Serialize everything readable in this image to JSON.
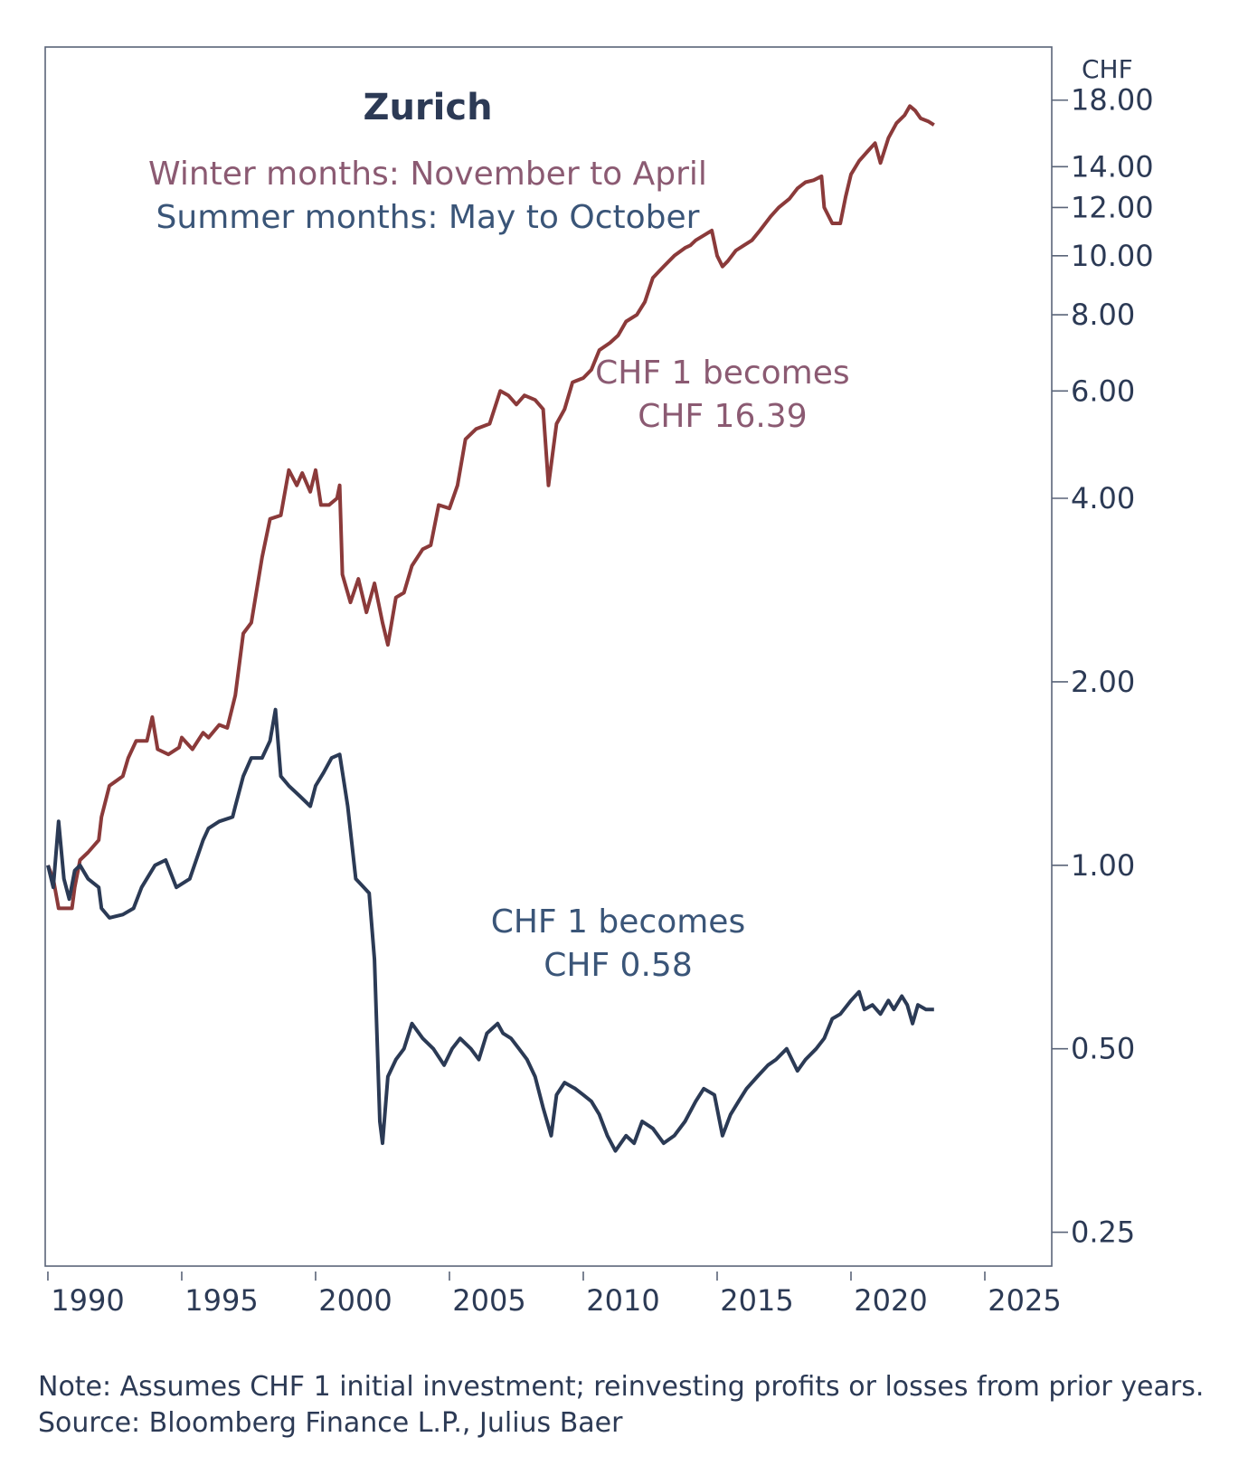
{
  "chart_data": {
    "type": "line",
    "title": "Zurich",
    "subtitles": [
      "Winter months: November to April",
      "Summer months: May to October"
    ],
    "y_unit_label": "CHF",
    "y_scale": "log",
    "ylim": [
      0.22,
      22
    ],
    "xlim": [
      1989.9,
      2027.5
    ],
    "y_ticks": [
      "18.00",
      "14.00",
      "12.00",
      "10.00",
      "8.00",
      "6.00",
      "4.00",
      "2.00",
      "1.00",
      "0.50",
      "0.25"
    ],
    "x_ticks": [
      "1990",
      "1995",
      "2000",
      "2005",
      "2010",
      "2015",
      "2020",
      "2025"
    ],
    "series": [
      {
        "name": "Winter months: November to April",
        "color": "#8b3a3a",
        "points": [
          [
            1990.0,
            1.0
          ],
          [
            1990.2,
            0.95
          ],
          [
            1990.4,
            0.85
          ],
          [
            1990.9,
            0.85
          ],
          [
            1991.0,
            0.92
          ],
          [
            1991.2,
            1.02
          ],
          [
            1991.5,
            1.05
          ],
          [
            1991.9,
            1.1
          ],
          [
            1992.0,
            1.2
          ],
          [
            1992.3,
            1.35
          ],
          [
            1992.8,
            1.4
          ],
          [
            1993.0,
            1.5
          ],
          [
            1993.3,
            1.6
          ],
          [
            1993.7,
            1.6
          ],
          [
            1993.9,
            1.75
          ],
          [
            1994.1,
            1.55
          ],
          [
            1994.5,
            1.52
          ],
          [
            1994.9,
            1.56
          ],
          [
            1995.0,
            1.62
          ],
          [
            1995.4,
            1.55
          ],
          [
            1995.8,
            1.65
          ],
          [
            1996.0,
            1.62
          ],
          [
            1996.4,
            1.7
          ],
          [
            1996.7,
            1.68
          ],
          [
            1997.0,
            1.9
          ],
          [
            1997.3,
            2.4
          ],
          [
            1997.6,
            2.5
          ],
          [
            1998.0,
            3.2
          ],
          [
            1998.3,
            3.7
          ],
          [
            1998.7,
            3.75
          ],
          [
            1999.0,
            4.45
          ],
          [
            1999.3,
            4.2
          ],
          [
            1999.5,
            4.4
          ],
          [
            1999.8,
            4.1
          ],
          [
            2000.0,
            4.45
          ],
          [
            2000.2,
            3.9
          ],
          [
            2000.5,
            3.9
          ],
          [
            2000.8,
            4.0
          ],
          [
            2000.9,
            4.2
          ],
          [
            2001.0,
            3.0
          ],
          [
            2001.3,
            2.7
          ],
          [
            2001.6,
            2.95
          ],
          [
            2001.9,
            2.6
          ],
          [
            2002.2,
            2.9
          ],
          [
            2002.5,
            2.5
          ],
          [
            2002.7,
            2.3
          ],
          [
            2003.0,
            2.75
          ],
          [
            2003.3,
            2.8
          ],
          [
            2003.6,
            3.1
          ],
          [
            2004.0,
            3.3
          ],
          [
            2004.3,
            3.35
          ],
          [
            2004.6,
            3.9
          ],
          [
            2005.0,
            3.85
          ],
          [
            2005.3,
            4.2
          ],
          [
            2005.6,
            5.0
          ],
          [
            2006.0,
            5.2
          ],
          [
            2006.5,
            5.3
          ],
          [
            2006.9,
            6.0
          ],
          [
            2007.2,
            5.9
          ],
          [
            2007.5,
            5.7
          ],
          [
            2007.8,
            5.9
          ],
          [
            2008.2,
            5.8
          ],
          [
            2008.5,
            5.6
          ],
          [
            2008.7,
            4.2
          ],
          [
            2009.0,
            5.3
          ],
          [
            2009.3,
            5.6
          ],
          [
            2009.6,
            6.2
          ],
          [
            2010.0,
            6.3
          ],
          [
            2010.3,
            6.5
          ],
          [
            2010.6,
            7.0
          ],
          [
            2011.0,
            7.2
          ],
          [
            2011.3,
            7.4
          ],
          [
            2011.6,
            7.8
          ],
          [
            2012.0,
            8.0
          ],
          [
            2012.3,
            8.4
          ],
          [
            2012.6,
            9.2
          ],
          [
            2013.0,
            9.6
          ],
          [
            2013.4,
            10.0
          ],
          [
            2013.8,
            10.3
          ],
          [
            2014.0,
            10.4
          ],
          [
            2014.2,
            10.6
          ],
          [
            2014.5,
            10.8
          ],
          [
            2014.8,
            11.0
          ],
          [
            2015.0,
            10.0
          ],
          [
            2015.2,
            9.6
          ],
          [
            2015.4,
            9.8
          ],
          [
            2015.7,
            10.2
          ],
          [
            2016.0,
            10.4
          ],
          [
            2016.3,
            10.6
          ],
          [
            2016.6,
            11.0
          ],
          [
            2017.0,
            11.6
          ],
          [
            2017.3,
            12.0
          ],
          [
            2017.7,
            12.4
          ],
          [
            2018.0,
            12.9
          ],
          [
            2018.3,
            13.2
          ],
          [
            2018.6,
            13.3
          ],
          [
            2018.9,
            13.5
          ],
          [
            2019.0,
            12.0
          ],
          [
            2019.3,
            11.3
          ],
          [
            2019.6,
            11.3
          ],
          [
            2019.8,
            12.5
          ],
          [
            2020.0,
            13.6
          ],
          [
            2020.3,
            14.3
          ],
          [
            2020.6,
            14.8
          ],
          [
            2020.9,
            15.3
          ],
          [
            2021.1,
            14.2
          ],
          [
            2021.4,
            15.6
          ],
          [
            2021.7,
            16.5
          ],
          [
            2022.0,
            17.0
          ],
          [
            2022.2,
            17.6
          ],
          [
            2022.4,
            17.3
          ],
          [
            2022.6,
            16.8
          ],
          [
            2022.9,
            16.6
          ],
          [
            2023.1,
            16.39
          ]
        ]
      },
      {
        "name": "Summer months: May to October",
        "color": "#2b3a55",
        "points": [
          [
            1990.0,
            1.0
          ],
          [
            1990.2,
            0.92
          ],
          [
            1990.4,
            1.18
          ],
          [
            1990.6,
            0.95
          ],
          [
            1990.8,
            0.88
          ],
          [
            1991.0,
            0.98
          ],
          [
            1991.2,
            1.0
          ],
          [
            1991.5,
            0.95
          ],
          [
            1991.9,
            0.92
          ],
          [
            1992.0,
            0.85
          ],
          [
            1992.3,
            0.82
          ],
          [
            1992.8,
            0.83
          ],
          [
            1993.2,
            0.85
          ],
          [
            1993.5,
            0.92
          ],
          [
            1994.0,
            1.0
          ],
          [
            1994.4,
            1.02
          ],
          [
            1994.8,
            0.92
          ],
          [
            1995.3,
            0.95
          ],
          [
            1995.8,
            1.1
          ],
          [
            1996.0,
            1.15
          ],
          [
            1996.4,
            1.18
          ],
          [
            1996.9,
            1.2
          ],
          [
            1997.0,
            1.25
          ],
          [
            1997.3,
            1.4
          ],
          [
            1997.6,
            1.5
          ],
          [
            1998.0,
            1.5
          ],
          [
            1998.3,
            1.6
          ],
          [
            1998.5,
            1.8
          ],
          [
            1998.7,
            1.4
          ],
          [
            1999.0,
            1.35
          ],
          [
            1999.4,
            1.3
          ],
          [
            1999.8,
            1.25
          ],
          [
            2000.0,
            1.35
          ],
          [
            2000.3,
            1.42
          ],
          [
            2000.6,
            1.5
          ],
          [
            2000.9,
            1.52
          ],
          [
            2001.2,
            1.25
          ],
          [
            2001.5,
            0.95
          ],
          [
            2001.8,
            0.92
          ],
          [
            2002.0,
            0.9
          ],
          [
            2002.2,
            0.7
          ],
          [
            2002.4,
            0.38
          ],
          [
            2002.5,
            0.35
          ],
          [
            2002.7,
            0.45
          ],
          [
            2003.0,
            0.48
          ],
          [
            2003.3,
            0.5
          ],
          [
            2003.6,
            0.55
          ],
          [
            2004.0,
            0.52
          ],
          [
            2004.4,
            0.5
          ],
          [
            2004.8,
            0.47
          ],
          [
            2005.1,
            0.5
          ],
          [
            2005.4,
            0.52
          ],
          [
            2005.8,
            0.5
          ],
          [
            2006.1,
            0.48
          ],
          [
            2006.4,
            0.53
          ],
          [
            2006.8,
            0.55
          ],
          [
            2007.0,
            0.53
          ],
          [
            2007.3,
            0.52
          ],
          [
            2007.6,
            0.5
          ],
          [
            2007.9,
            0.48
          ],
          [
            2008.2,
            0.45
          ],
          [
            2008.5,
            0.4
          ],
          [
            2008.8,
            0.36
          ],
          [
            2009.0,
            0.42
          ],
          [
            2009.3,
            0.44
          ],
          [
            2009.7,
            0.43
          ],
          [
            2010.0,
            0.42
          ],
          [
            2010.3,
            0.41
          ],
          [
            2010.6,
            0.39
          ],
          [
            2010.9,
            0.36
          ],
          [
            2011.2,
            0.34
          ],
          [
            2011.6,
            0.36
          ],
          [
            2011.9,
            0.35
          ],
          [
            2012.2,
            0.38
          ],
          [
            2012.6,
            0.37
          ],
          [
            2013.0,
            0.35
          ],
          [
            2013.4,
            0.36
          ],
          [
            2013.8,
            0.38
          ],
          [
            2014.2,
            0.41
          ],
          [
            2014.5,
            0.43
          ],
          [
            2014.9,
            0.42
          ],
          [
            2015.2,
            0.36
          ],
          [
            2015.5,
            0.39
          ],
          [
            2015.8,
            0.41
          ],
          [
            2016.1,
            0.43
          ],
          [
            2016.5,
            0.45
          ],
          [
            2016.9,
            0.47
          ],
          [
            2017.2,
            0.48
          ],
          [
            2017.6,
            0.5
          ],
          [
            2018.0,
            0.46
          ],
          [
            2018.3,
            0.48
          ],
          [
            2018.7,
            0.5
          ],
          [
            2019.0,
            0.52
          ],
          [
            2019.3,
            0.56
          ],
          [
            2019.6,
            0.57
          ],
          [
            2020.0,
            0.6
          ],
          [
            2020.3,
            0.62
          ],
          [
            2020.5,
            0.58
          ],
          [
            2020.8,
            0.59
          ],
          [
            2021.1,
            0.57
          ],
          [
            2021.4,
            0.6
          ],
          [
            2021.6,
            0.58
          ],
          [
            2021.9,
            0.61
          ],
          [
            2022.1,
            0.59
          ],
          [
            2022.3,
            0.55
          ],
          [
            2022.5,
            0.59
          ],
          [
            2022.8,
            0.58
          ],
          [
            2023.1,
            0.58
          ]
        ]
      }
    ],
    "annotations": [
      {
        "lines": [
          "CHF 1 becomes",
          "CHF 16.39"
        ],
        "color": "#8b5a72",
        "x": 2015.2,
        "y": 5.8
      },
      {
        "lines": [
          "CHF  1 becomes",
          "CHF 0.58"
        ],
        "color": "#3a5578",
        "x": 2011.3,
        "y": 0.73
      }
    ]
  },
  "note": "Note: Assumes CHF 1 initial investment; reinvesting profits or losses from prior years. Source: Bloomberg Finance L.P., Julius Baer"
}
